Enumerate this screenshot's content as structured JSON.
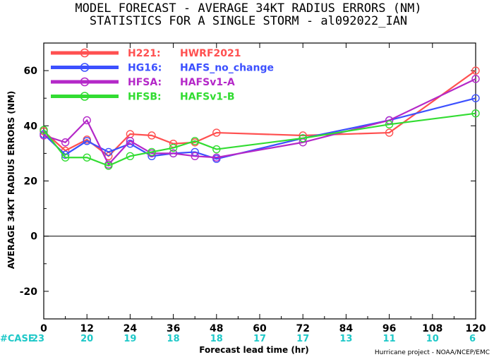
{
  "chart_data": {
    "type": "line",
    "title_lines": [
      "MODEL FORECAST - AVERAGE 34KT RADIUS ERRORS (NM)",
      "STATISTICS FOR A SINGLE STORM - al092022_IAN"
    ],
    "xlabel": "Forecast lead time (hr)",
    "ylabel": "AVERAGE 34KT RADIUS ERRORS (NM)",
    "xlim": [
      0,
      120
    ],
    "ylim": [
      -30,
      70
    ],
    "x_ticks": [
      0,
      12,
      24,
      36,
      48,
      60,
      72,
      84,
      96,
      108,
      120
    ],
    "y_ticks": [
      -20,
      0,
      20,
      40,
      60
    ],
    "grid": false,
    "legend_position": "top-left",
    "case_label": "#CASE",
    "case_counts": [
      {
        "x": 0,
        "n": "23"
      },
      {
        "x": 12,
        "n": "20"
      },
      {
        "x": 24,
        "n": "19"
      },
      {
        "x": 36,
        "n": "18"
      },
      {
        "x": 48,
        "n": "18"
      },
      {
        "x": 60,
        "n": "17"
      },
      {
        "x": 72,
        "n": "17"
      },
      {
        "x": 84,
        "n": "13"
      },
      {
        "x": 96,
        "n": "11"
      },
      {
        "x": 108,
        "n": "10"
      },
      {
        "x": 120,
        "n": "6"
      }
    ],
    "credit": "Hurricane project - NOAA/NCEP/EMC",
    "series": [
      {
        "code": "H221:",
        "name": "HWRF2021",
        "color": "#ff5050",
        "x": [
          0,
          6,
          12,
          18,
          24,
          30,
          36,
          42,
          48,
          72,
          96,
          120
        ],
        "y": [
          38,
          31,
          35,
          29,
          37,
          36.5,
          33.5,
          34,
          37.5,
          36.5,
          37.5,
          60
        ]
      },
      {
        "code": "HG16:",
        "name": "HAFS_no_change",
        "color": "#3c50ff",
        "x": [
          0,
          6,
          12,
          18,
          24,
          30,
          36,
          42,
          48,
          72,
          96,
          120
        ],
        "y": [
          37,
          29.5,
          34.5,
          30.5,
          33.5,
          29,
          30,
          30.5,
          28,
          35.5,
          42,
          50
        ]
      },
      {
        "code": "HFSA:",
        "name": "HAFSv1-A",
        "color": "#b428c8",
        "x": [
          0,
          6,
          12,
          18,
          24,
          30,
          36,
          42,
          48,
          72,
          96,
          120
        ],
        "y": [
          36.5,
          34,
          42,
          26,
          34.5,
          30,
          30,
          29,
          28.5,
          34,
          42,
          57
        ]
      },
      {
        "code": "HFSB:",
        "name": "HAFSv1-B",
        "color": "#32dc32",
        "x": [
          0,
          6,
          12,
          18,
          24,
          30,
          36,
          42,
          48,
          72,
          96,
          120
        ],
        "y": [
          38.5,
          28.5,
          28.5,
          25.5,
          29,
          30.5,
          32,
          34.5,
          31.5,
          35.5,
          40.5,
          44.5
        ]
      }
    ]
  }
}
